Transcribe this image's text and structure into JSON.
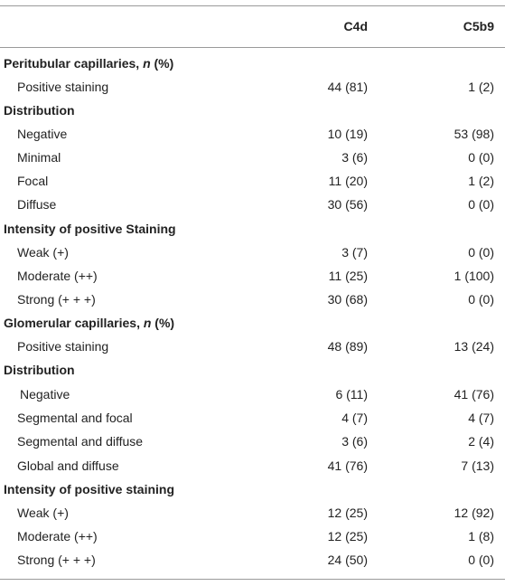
{
  "header": {
    "col1": "C4d",
    "col2": "C5b9"
  },
  "rows": [
    {
      "type": "section",
      "pre": "Peritubular capillaries, ",
      "ital": "n",
      "post": " (%)"
    },
    {
      "type": "data",
      "label": "Positive staining",
      "c4d": "44 (81)",
      "c5b9": "1 (2)"
    },
    {
      "type": "section",
      "pre": "Distribution",
      "ital": "",
      "post": ""
    },
    {
      "type": "data",
      "label": "Negative",
      "c4d": "10 (19)",
      "c5b9": "53 (98)"
    },
    {
      "type": "data",
      "label": "Minimal",
      "c4d": "3 (6)",
      "c5b9": "0 (0)"
    },
    {
      "type": "data",
      "label": "Focal",
      "c4d": "11 (20)",
      "c5b9": "1 (2)"
    },
    {
      "type": "data",
      "label": "Diffuse",
      "c4d": "30 (56)",
      "c5b9": "0 (0)"
    },
    {
      "type": "section",
      "pre": "Intensity of positive Staining",
      "ital": "",
      "post": ""
    },
    {
      "type": "data",
      "label": "Weak (+)",
      "c4d": "3 (7)",
      "c5b9": "0 (0)"
    },
    {
      "type": "data",
      "label": "Moderate (++)",
      "c4d": "11 (25)",
      "c5b9": "1 (100)"
    },
    {
      "type": "data",
      "label": "Strong (+ + +)",
      "c4d": "30 (68)",
      "c5b9": "0 (0)"
    },
    {
      "type": "section",
      "pre": "Glomerular capillaries, ",
      "ital": "n",
      "post": " (%)"
    },
    {
      "type": "data",
      "label": "Positive staining",
      "c4d": "48 (89)",
      "c5b9": "13 (24)"
    },
    {
      "type": "section",
      "pre": "Distribution",
      "ital": "",
      "post": ""
    },
    {
      "type": "data",
      "label": "Negative",
      "c4d": "6 (11)",
      "c5b9": "41 (76)"
    },
    {
      "type": "data",
      "label": "Segmental and focal",
      "c4d": "4 (7)",
      "c5b9": "4 (7)"
    },
    {
      "type": "data",
      "label": "Segmental and diffuse",
      "c4d": "3 (6)",
      "c5b9": "2 (4)"
    },
    {
      "type": "data",
      "label": "Global and diffuse",
      "c4d": "41 (76)",
      "c5b9": "7 (13)"
    },
    {
      "type": "section",
      "pre": "Intensity of positive staining",
      "ital": "",
      "post": ""
    },
    {
      "type": "data",
      "label": "Weak (+)",
      "c4d": "12 (25)",
      "c5b9": "12 (92)"
    },
    {
      "type": "data",
      "label": "Moderate (++)",
      "c4d": "12 (25)",
      "c5b9": "1 (8)"
    },
    {
      "type": "data",
      "label": "Strong (+ + +)",
      "c4d": "24 (50)",
      "c5b9": "0 (0)"
    }
  ]
}
